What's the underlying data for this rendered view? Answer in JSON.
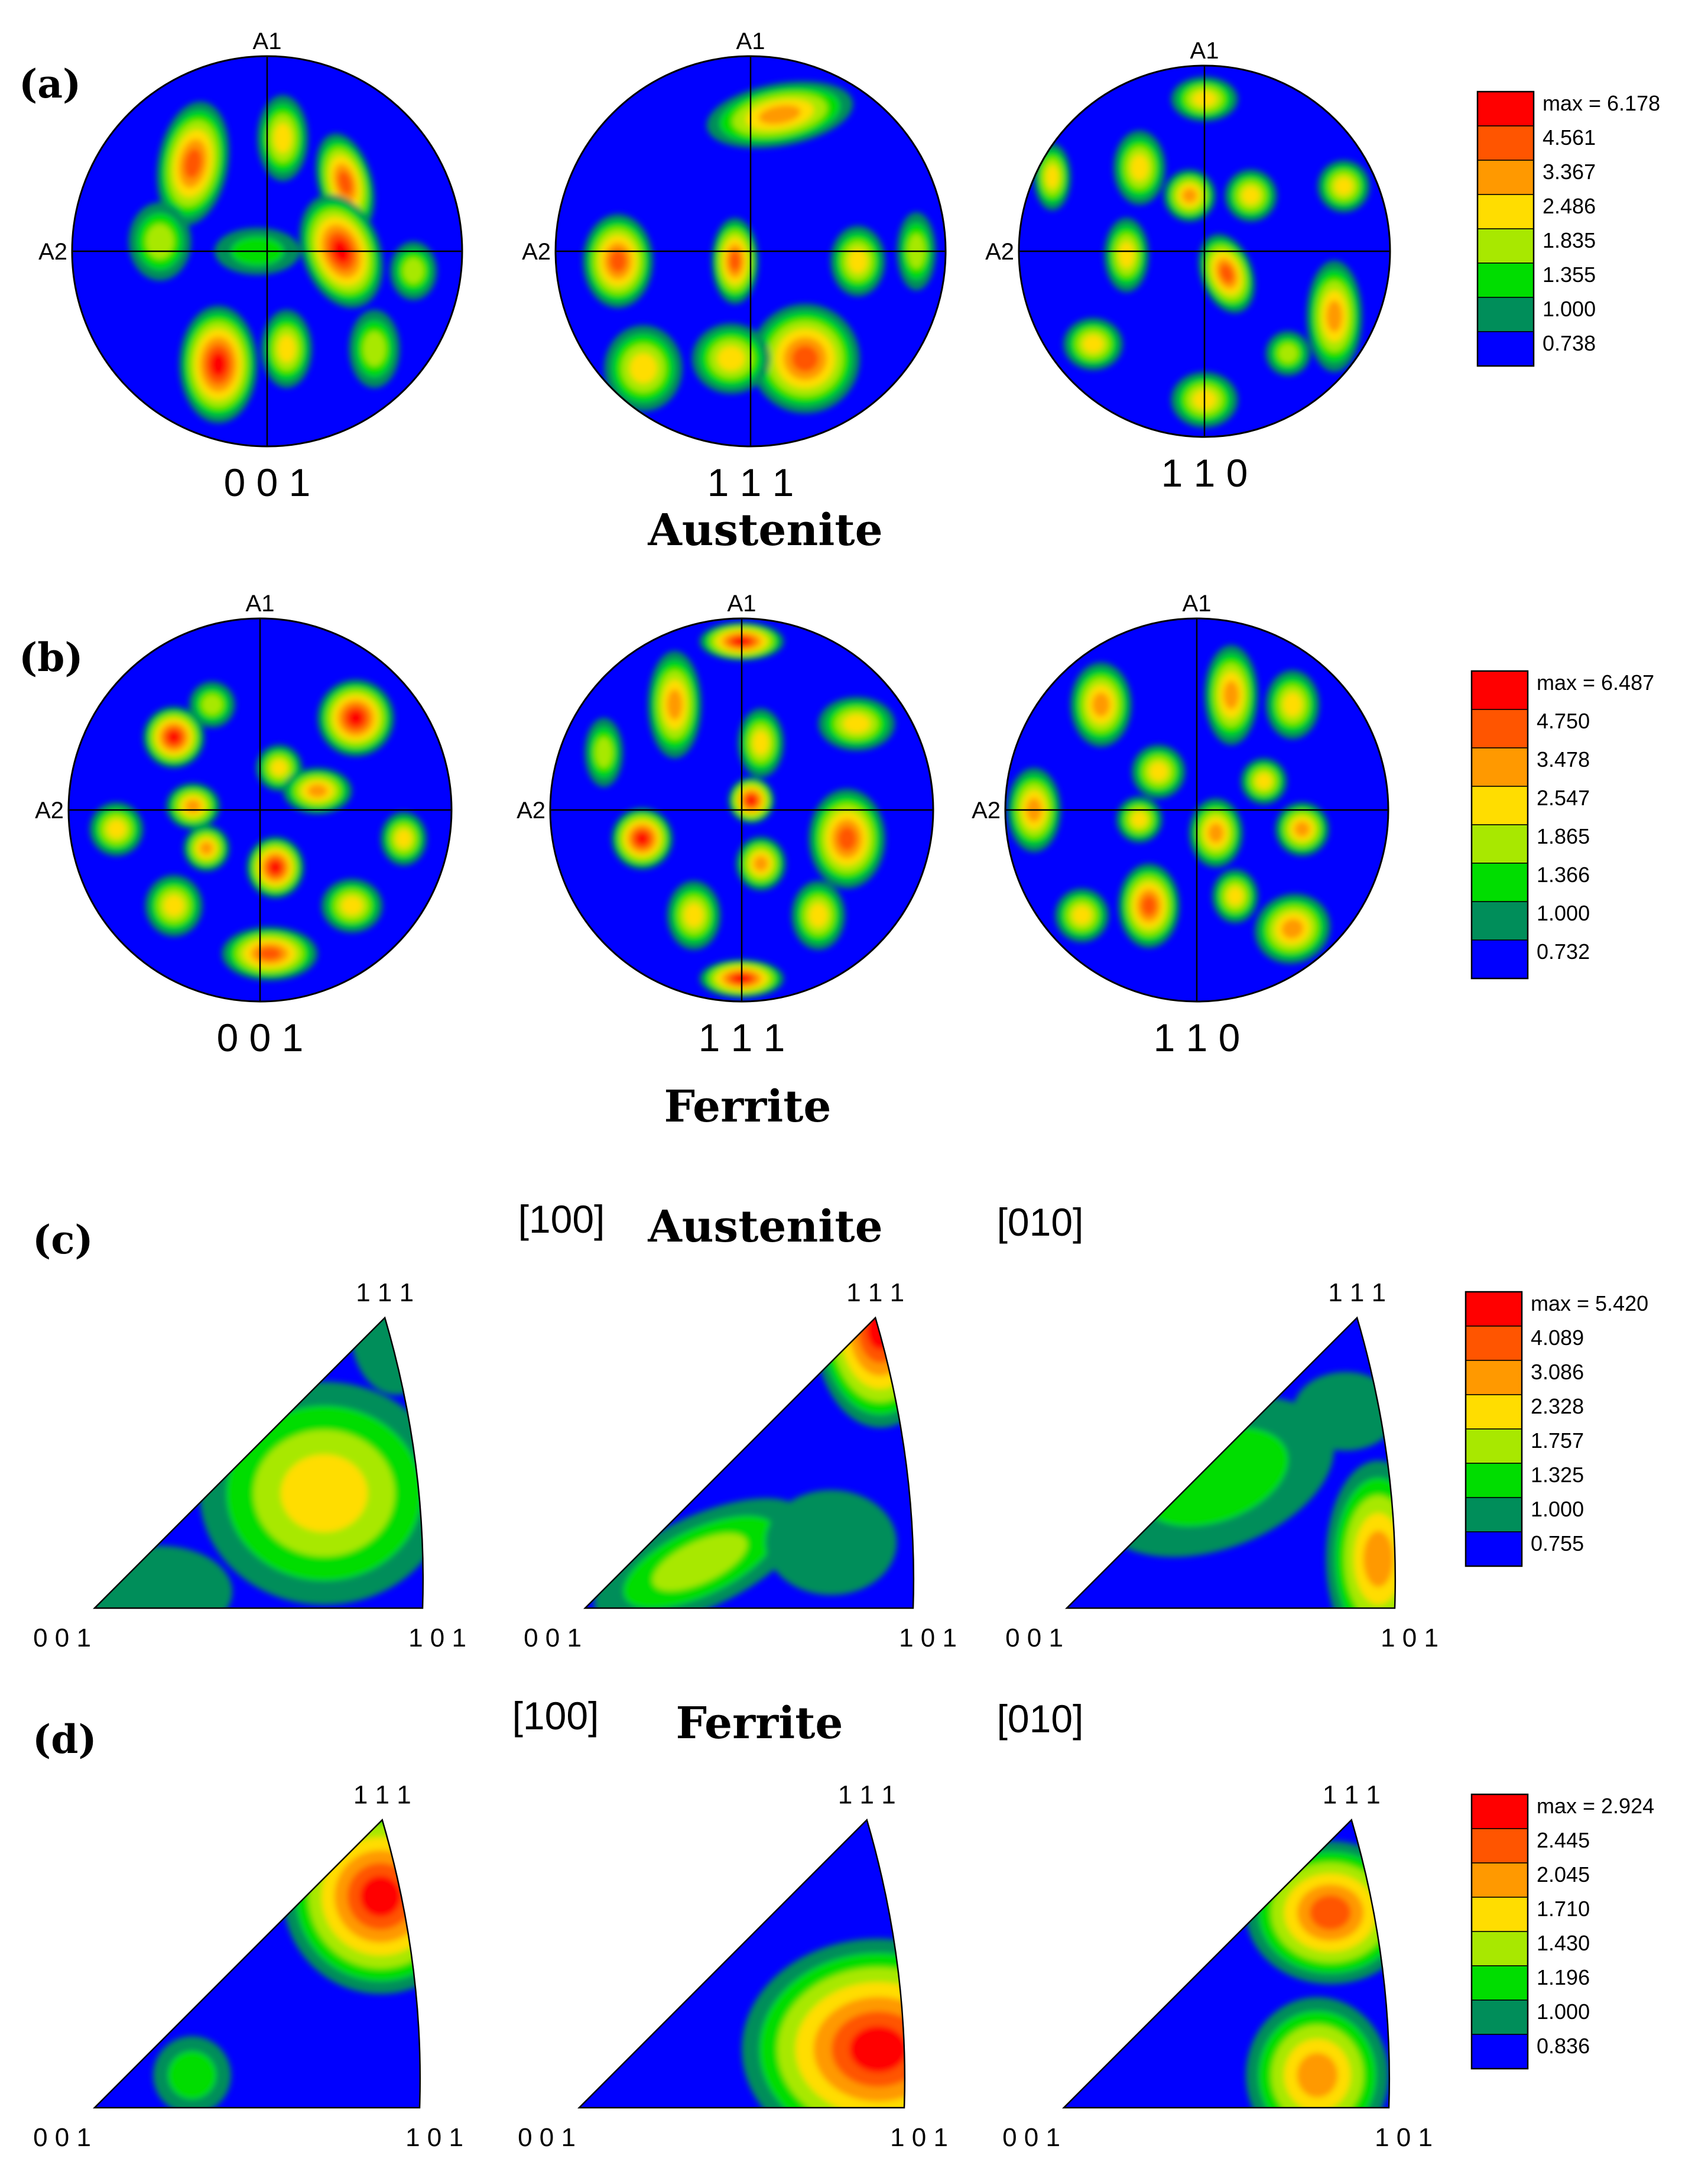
{
  "colors": {
    "background": "#0000FF",
    "levels": [
      "#0000FF",
      "#008E5A",
      "#00DD00",
      "#A8E800",
      "#FFDD00",
      "#FF9900",
      "#FF5500",
      "#FF0000"
    ]
  },
  "panels": {
    "a": {
      "letter": "(a)",
      "phase": "Austenite",
      "axis_top": "A1",
      "axis_left": "A2",
      "poles": [
        "0 0 1",
        "1 1 1",
        "1 1 0"
      ],
      "legend": [
        "max = 6.178",
        "4.561",
        "3.367",
        "2.486",
        "1.835",
        "1.355",
        "1.000",
        "0.738"
      ]
    },
    "b": {
      "letter": "(b)",
      "phase": "Ferrite",
      "axis_top": "A1",
      "axis_left": "A2",
      "poles": [
        "0 0 1",
        "1 1 1",
        "1 1 0"
      ],
      "legend": [
        "max = 6.487",
        "4.750",
        "3.478",
        "2.547",
        "1.865",
        "1.366",
        "1.000",
        "0.732"
      ]
    },
    "c": {
      "letter": "(c)",
      "phase": "Austenite",
      "dir_left": "[100]",
      "dir_right": "[010]",
      "corners": [
        "0 0 1",
        "1 0 1",
        "1 1 1"
      ],
      "legend": [
        "max = 5.420",
        "4.089",
        "3.086",
        "2.328",
        "1.757",
        "1.325",
        "1.000",
        "0.755"
      ]
    },
    "d": {
      "letter": "(d)",
      "phase": "Ferrite",
      "dir_left": "[100]",
      "dir_right": "[010]",
      "corners": [
        "0 0 1",
        "1 0 1",
        "1 1 1"
      ],
      "legend": [
        "max = 2.924",
        "2.445",
        "2.045",
        "1.710",
        "1.430",
        "1.196",
        "1.000",
        "0.836"
      ]
    }
  }
}
